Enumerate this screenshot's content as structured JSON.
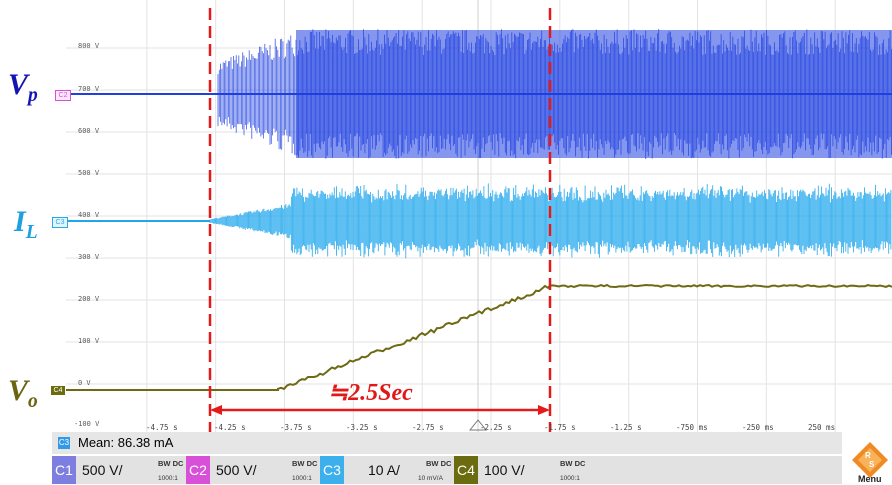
{
  "screen": {
    "y_labels": [
      "800 V",
      "700 V",
      "600 V",
      "500 V",
      "400 V",
      "300 V",
      "200 V",
      "100 V",
      "0 V",
      "-100 V"
    ],
    "x_labels": [
      "-4.75 s",
      "-4.25 s",
      "-3.75 s",
      "-3.25 s",
      "-2.75 s",
      "-2.25 s",
      "-1.75 s",
      "-1.25 s",
      "-750 ms",
      "-250 ms",
      "250 ms"
    ],
    "markers": [
      {
        "id": "C2",
        "color": "#d84fd8"
      },
      {
        "id": "C3",
        "color": "#27a9e8"
      },
      {
        "id": "C4",
        "color": "#6b6b10"
      }
    ],
    "trace_colors": {
      "vp": "#1f3fe0",
      "il": "#20a6ec",
      "vo": "#6e6a14",
      "cursor": "#e41a1a"
    }
  },
  "labels": {
    "vp": {
      "main": "V",
      "sub": "p",
      "color": "#1414b4"
    },
    "il": {
      "main": "I",
      "sub": "L",
      "color": "#1ea0e0"
    },
    "vo": {
      "main": "V",
      "sub": "o",
      "color": "#6b6410"
    }
  },
  "annotation": {
    "duration": "≒2.5Sec"
  },
  "measure": {
    "icon": "C3",
    "text": "Mean: 86.38 mA"
  },
  "channels": [
    {
      "id": "C1",
      "scale": "500 V/",
      "bw": "BW DC",
      "ratio": "1000:1",
      "color": "#7e7ee0"
    },
    {
      "id": "C2",
      "scale": "500 V/",
      "bw": "BW DC",
      "ratio": "1000:1",
      "color": "#d84fd8"
    },
    {
      "id": "C3",
      "scale": "10 A/",
      "bw": "BW DC",
      "ratio": "10 mV/A",
      "color": "#3cb0ec"
    },
    {
      "id": "C4",
      "scale": "100 V/",
      "bw": "BW DC",
      "ratio": "1000:1",
      "color": "#6b6b10"
    }
  ],
  "menu": {
    "label": "Menu"
  }
}
